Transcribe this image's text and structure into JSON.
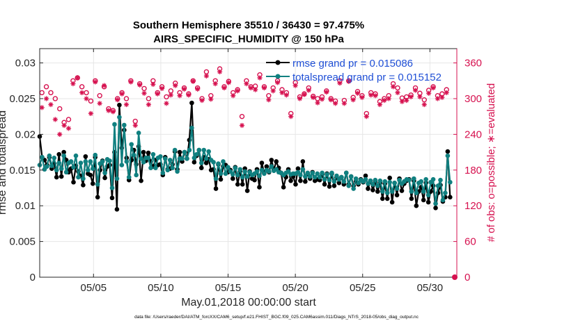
{
  "chart_data": {
    "type": "line",
    "title_line1": "Southern Hemisphere 35510 / 36430 = 97.475%",
    "title_line2": "AIRS_SPECIFIC_HUMIDITY @ 150 hPa",
    "xlabel": "May.01,2018 00:00:00 start",
    "ylabel_left": "rmse and totalspread",
    "ylabel_right": "# of obs: o=possible; ∗=evaluated",
    "footer": "data file: /Users/raeder/DAI/ATM_forcXX/CAM6_setup/f.e21.FHIST_BGC.f09_025.CAM6assim.011/Diags_NTrS_2018-05/obs_diag_output.nc",
    "x_range_days": [
      1,
      32
    ],
    "x_ticks": [
      {
        "day": 5,
        "label": "05/05"
      },
      {
        "day": 10,
        "label": "05/10"
      },
      {
        "day": 15,
        "label": "05/15"
      },
      {
        "day": 20,
        "label": "05/20"
      },
      {
        "day": 25,
        "label": "05/25"
      },
      {
        "day": 30,
        "label": "05/30"
      }
    ],
    "y_left": {
      "range": [
        0,
        0.032
      ],
      "ticks": [
        0,
        0.005,
        0.01,
        0.015,
        0.02,
        0.025,
        0.03
      ],
      "tick_labels": [
        "0",
        "0.005",
        "0.01",
        "0.015",
        "0.02",
        "0.025",
        "0.03"
      ]
    },
    "y_right": {
      "range": [
        0,
        384
      ],
      "ticks": [
        0,
        60,
        120,
        180,
        240,
        300,
        360
      ],
      "tick_labels": [
        "0",
        "60",
        "120",
        "180",
        "240",
        "300",
        "360"
      ]
    },
    "grid": true,
    "legend_position": "top-right",
    "colors": {
      "rmse": "#000000",
      "spread": "#108080",
      "obs": "#d6114f",
      "legend_text": "#1f4fd6"
    },
    "series": [
      {
        "name": "rmse grand pr = 0.015086",
        "values": [
          0.0197,
          0.0168,
          0.0164,
          0.0157,
          0.0168,
          0.0152,
          0.0159,
          0.014,
          0.0172,
          0.0141,
          0.0175,
          0.0164,
          0.0147,
          0.0152,
          0.0133,
          0.0156,
          0.0148,
          0.0142,
          0.0129,
          0.0169,
          0.0145,
          0.0143,
          0.0131,
          0.0168,
          0.0112,
          0.015,
          0.0163,
          0.0139,
          0.0155,
          0.0157,
          0.0111,
          0.0175,
          0.0095,
          0.0241,
          0.0181,
          0.0206,
          0.0167,
          0.0136,
          0.0164,
          0.0178,
          0.0158,
          0.0183,
          0.0135,
          0.0175,
          0.0163,
          0.0174,
          0.0162,
          0.0155,
          0.0164,
          0.0157,
          0.0158,
          0.0143,
          0.0168,
          0.0151,
          0.0152,
          0.0158,
          0.0176,
          0.0151,
          0.0175,
          0.0162,
          0.0175,
          0.0166,
          0.0192,
          0.0244,
          0.0161,
          0.017,
          0.0178,
          0.0153,
          0.0168,
          0.016,
          0.0165,
          0.015,
          0.0151,
          0.0124,
          0.0158,
          0.0137,
          0.0155,
          0.0157,
          0.0147,
          0.015,
          0.0138,
          0.0154,
          0.013,
          0.0148,
          0.013,
          0.0152,
          0.0121,
          0.0148,
          0.0138,
          0.0136,
          0.0151,
          0.0126,
          0.016,
          0.0146,
          0.0155,
          0.0147,
          0.0164,
          0.0151,
          0.0162,
          0.0153,
          0.0146,
          0.0126,
          0.014,
          0.0151,
          0.0135,
          0.0141,
          0.013,
          0.0152,
          0.0135,
          0.0162,
          0.0134,
          0.0145,
          0.0138,
          0.0147,
          0.0135,
          0.0137,
          0.0136,
          0.0144,
          0.013,
          0.0145,
          0.0127,
          0.0145,
          0.0128,
          0.014,
          0.0132,
          0.014,
          0.013,
          0.0146,
          0.013,
          0.0141,
          0.0128,
          0.0134,
          0.013,
          0.0137,
          0.0133,
          0.0142,
          0.0124,
          0.0135,
          0.0122,
          0.0133,
          0.012,
          0.0132,
          0.011,
          0.0131,
          0.011,
          0.0139,
          0.0105,
          0.0132,
          0.0115,
          0.0138,
          0.0121,
          0.0131,
          0.0135,
          0.0137,
          0.011,
          0.0135,
          0.01,
          0.012,
          0.0126,
          0.0108,
          0.0132,
          0.0105,
          0.012,
          0.0128,
          0.0097,
          0.0118,
          0.0129,
          0.0106,
          0.0112,
          0.0176,
          0.0112
        ]
      },
      {
        "name": "totalspread grand pr = 0.015152",
        "values": [
          0.0157,
          0.0168,
          0.0151,
          0.0155,
          0.017,
          0.0156,
          0.0167,
          0.015,
          0.016,
          0.0152,
          0.017,
          0.0147,
          0.016,
          0.0162,
          0.0154,
          0.017,
          0.014,
          0.016,
          0.0138,
          0.0162,
          0.015,
          0.0162,
          0.0152,
          0.0171,
          0.013,
          0.0159,
          0.0162,
          0.0146,
          0.0165,
          0.0163,
          0.0125,
          0.0214,
          0.0138,
          0.0224,
          0.0157,
          0.0213,
          0.0162,
          0.014,
          0.0186,
          0.0171,
          0.0143,
          0.0202,
          0.0166,
          0.0161,
          0.0167,
          0.0167,
          0.0153,
          0.0172,
          0.0153,
          0.0167,
          0.0169,
          0.0146,
          0.0166,
          0.015,
          0.0164,
          0.0153,
          0.0178,
          0.0148,
          0.0166,
          0.0166,
          0.0175,
          0.0166,
          0.0178,
          0.0209,
          0.0167,
          0.0172,
          0.0178,
          0.016,
          0.0178,
          0.0166,
          0.0176,
          0.0164,
          0.0161,
          0.0138,
          0.0159,
          0.0145,
          0.0162,
          0.0145,
          0.0154,
          0.0148,
          0.0144,
          0.0153,
          0.0143,
          0.0151,
          0.014,
          0.0148,
          0.0141,
          0.0147,
          0.0143,
          0.0145,
          0.0148,
          0.0142,
          0.015,
          0.0145,
          0.015,
          0.0148,
          0.0155,
          0.0149,
          0.0151,
          0.0147,
          0.0146,
          0.0143,
          0.0146,
          0.0148,
          0.0144,
          0.0145,
          0.0145,
          0.0147,
          0.0143,
          0.0151,
          0.0141,
          0.0146,
          0.0141,
          0.0146,
          0.014,
          0.0145,
          0.014,
          0.0146,
          0.0137,
          0.0144,
          0.0136,
          0.0146,
          0.0134,
          0.0142,
          0.0137,
          0.014,
          0.0134,
          0.0146,
          0.0128,
          0.0141,
          0.0124,
          0.0138,
          0.0132,
          0.0136,
          0.0134,
          0.0137,
          0.0131,
          0.0135,
          0.013,
          0.0136,
          0.0128,
          0.0135,
          0.012,
          0.0134,
          0.0118,
          0.0133,
          0.012,
          0.0132,
          0.0124,
          0.0136,
          0.0131,
          0.0134,
          0.0137,
          0.0136,
          0.012,
          0.0138,
          0.0118,
          0.0132,
          0.0134,
          0.012,
          0.0137,
          0.0115,
          0.0133,
          0.0137,
          0.0103,
          0.0128,
          0.0136,
          0.0108,
          0.0118,
          0.017,
          0.0133
        ]
      }
    ],
    "obs_possible": [
      310,
      320,
      310,
      300,
      283,
      260,
      265,
      330,
      335,
      320,
      310,
      296,
      330,
      305,
      320,
      283,
      280,
      300,
      310,
      300,
      330,
      262,
      325,
      317,
      300,
      330,
      310,
      320,
      303,
      313,
      326,
      310,
      318,
      308,
      330,
      318,
      300,
      345,
      305,
      330,
      350,
      320,
      329,
      310,
      315,
      270,
      330,
      320,
      321,
      340,
      320,
      305,
      318,
      330,
      315,
      310,
      275,
      327,
      303,
      308,
      318,
      304,
      300,
      303,
      313,
      300,
      296,
      330,
      297,
      330,
      302,
      312,
      305,
      275,
      310,
      308,
      295,
      300,
      305,
      325,
      318,
      301,
      303,
      306,
      318,
      309,
      298,
      314,
      320,
      305,
      308,
      315
    ],
    "obs_evaluated": [
      285,
      300,
      290,
      265,
      240,
      255,
      250,
      325,
      335,
      310,
      300,
      275,
      328,
      292,
      322,
      280,
      278,
      298,
      308,
      290,
      328,
      255,
      323,
      309,
      290,
      324,
      308,
      317,
      292,
      306,
      322,
      305,
      316,
      306,
      329,
      316,
      297,
      338,
      299,
      325,
      345,
      318,
      327,
      305,
      313,
      255,
      325,
      318,
      315,
      335,
      318,
      298,
      313,
      327,
      310,
      306,
      270,
      322,
      300,
      307,
      314,
      302,
      293,
      299,
      311,
      298,
      292,
      326,
      292,
      329,
      298,
      309,
      302,
      270,
      306,
      305,
      290,
      297,
      300,
      320,
      310,
      295,
      297,
      303,
      314,
      303,
      290,
      309,
      318,
      300,
      302,
      310
    ]
  }
}
